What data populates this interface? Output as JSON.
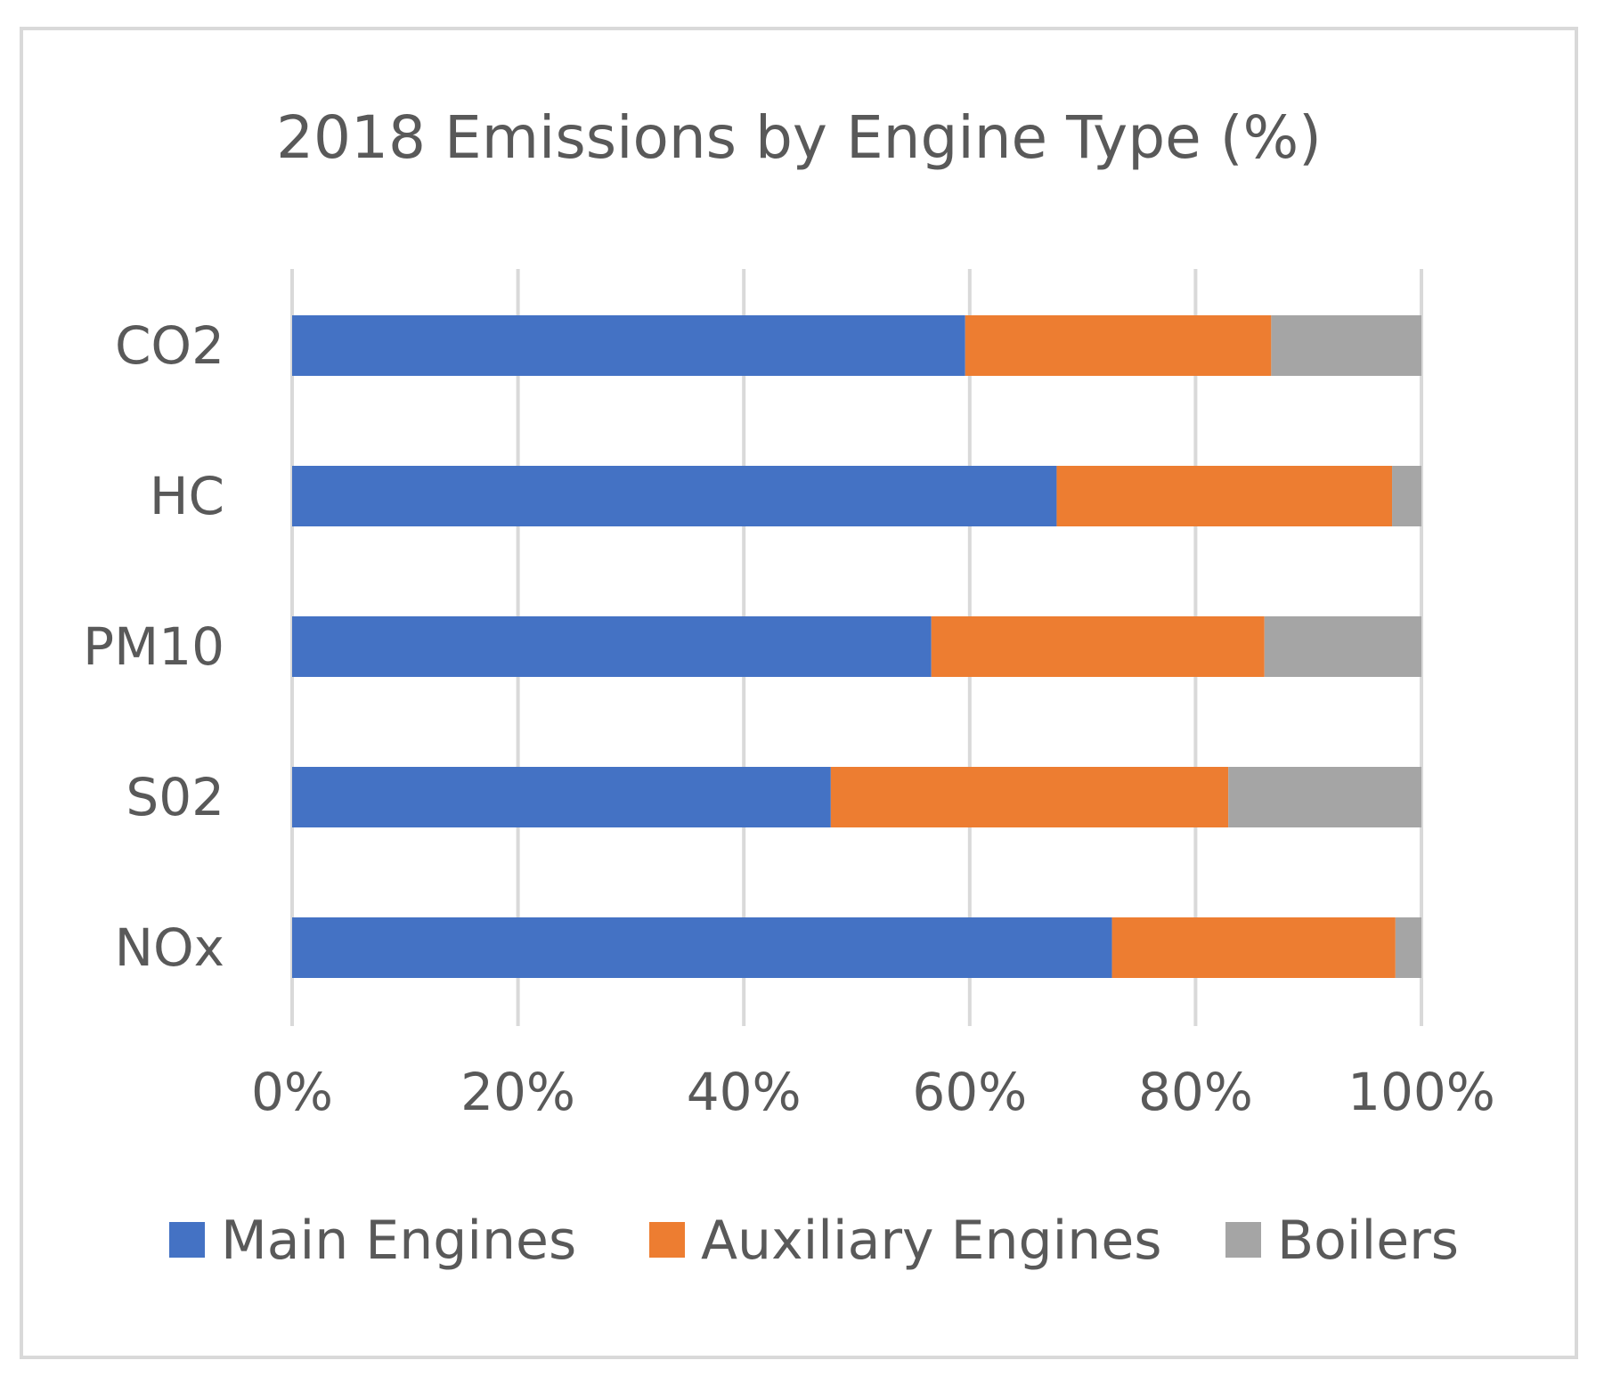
{
  "chart_data": {
    "type": "bar",
    "orientation": "horizontal",
    "stacked": "percent",
    "title": "2018 Emissions by Engine Type (%)",
    "xlabel": "",
    "ylabel": "",
    "categories": [
      "CO2",
      "HC",
      "PM10",
      "S02",
      "NOx"
    ],
    "series": [
      {
        "name": "Main Engines",
        "color": "#4472c4",
        "values": [
          59.6,
          67.7,
          56.6,
          47.7,
          72.6
        ]
      },
      {
        "name": "Auxiliary Engines",
        "color": "#ed7d31",
        "values": [
          27.1,
          29.7,
          29.5,
          35.2,
          25.1
        ]
      },
      {
        "name": "Boilers",
        "color": "#a5a5a5",
        "values": [
          13.3,
          2.6,
          13.9,
          17.1,
          2.3
        ]
      }
    ],
    "xlim": [
      0,
      100
    ],
    "xticks": [
      0,
      20,
      40,
      60,
      80,
      100
    ],
    "xtick_labels": [
      "0%",
      "20%",
      "40%",
      "60%",
      "80%",
      "100%"
    ],
    "grid": true,
    "legend_position": "bottom"
  }
}
